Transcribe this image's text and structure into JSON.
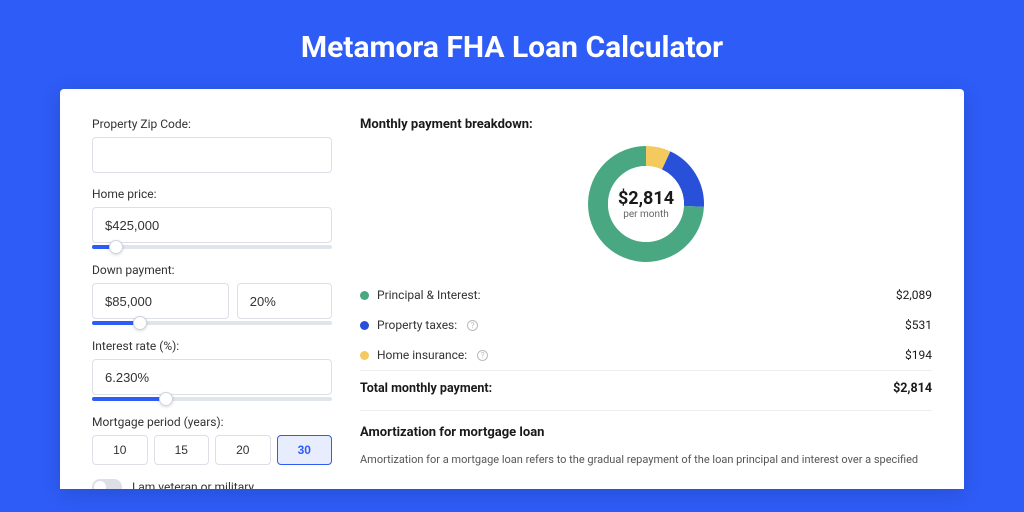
{
  "page": {
    "title": "Metamora FHA Loan Calculator",
    "background_color": "#2e5cf6",
    "card_bg": "#ffffff"
  },
  "form": {
    "zip": {
      "label": "Property Zip Code:",
      "value": ""
    },
    "home_price": {
      "label": "Home price:",
      "value": "$425,000",
      "slider_pct": 10
    },
    "down_payment": {
      "label": "Down payment:",
      "amount": "$85,000",
      "pct": "20%",
      "slider_pct": 20
    },
    "interest_rate": {
      "label": "Interest rate (%):",
      "value": "6.230%",
      "slider_pct": 31
    },
    "mortgage_period": {
      "label": "Mortgage period (years):",
      "options": [
        "10",
        "15",
        "20",
        "30"
      ],
      "selected": "30"
    },
    "veteran": {
      "label": "I am veteran or military",
      "value": false
    }
  },
  "breakdown": {
    "title": "Monthly payment breakdown:",
    "center_amount": "$2,814",
    "center_sub": "per month",
    "donut": {
      "slices": [
        {
          "label": "Principal & Interest:",
          "value": "$2,089",
          "color": "#49a881",
          "pct": 74.2,
          "info": false
        },
        {
          "label": "Property taxes:",
          "value": "$531",
          "color": "#2850d8",
          "pct": 18.9,
          "info": true
        },
        {
          "label": "Home insurance:",
          "value": "$194",
          "color": "#f4c95d",
          "pct": 6.9,
          "info": true
        }
      ]
    },
    "total": {
      "label": "Total monthly payment:",
      "value": "$2,814"
    }
  },
  "amortization": {
    "title": "Amortization for mortgage loan",
    "text": "Amortization for a mortgage loan refers to the gradual repayment of the loan principal and interest over a specified"
  }
}
